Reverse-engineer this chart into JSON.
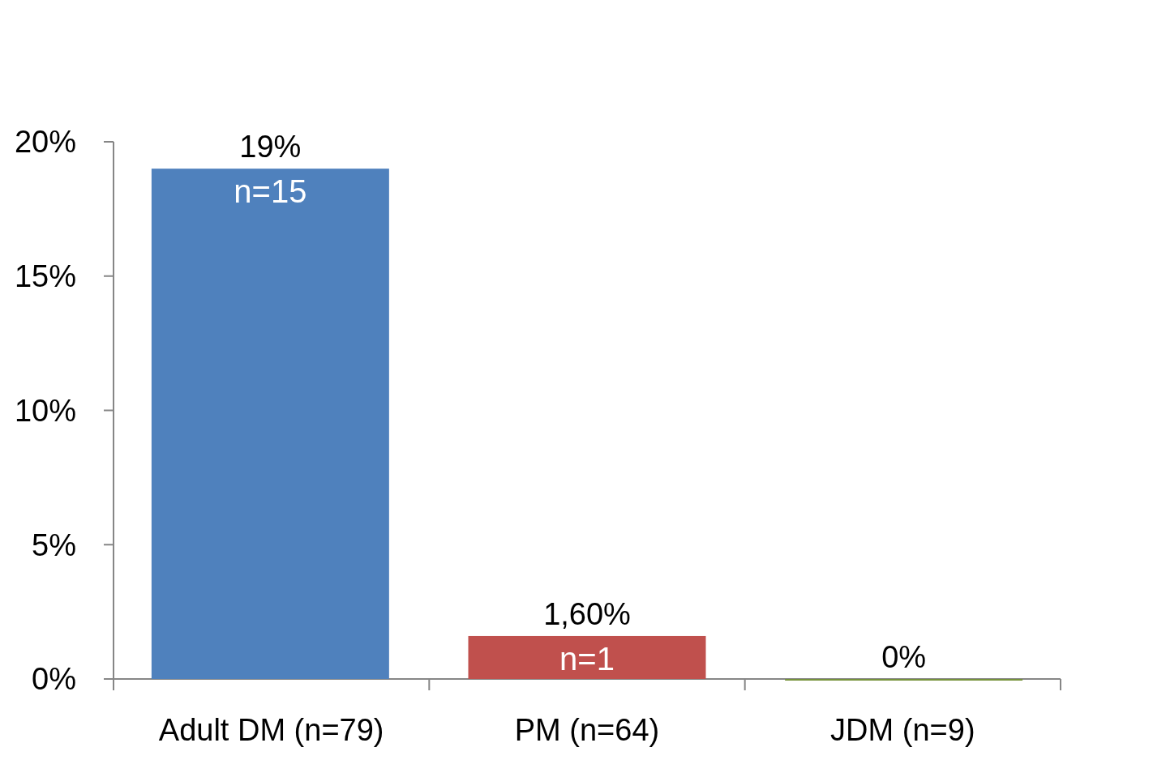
{
  "chart_data": {
    "type": "bar",
    "categories": [
      "Adult DM (n=79)",
      "PM (n=64)",
      "JDM (n=9)"
    ],
    "values": [
      19,
      1.6,
      0
    ],
    "colors": [
      "#4f81bd",
      "#c0504d",
      "#77933c"
    ],
    "value_labels": [
      "19%",
      "1,60%",
      "0%"
    ],
    "annotations": [
      {
        "text": "n=15",
        "x": "Adult DM (n=79)",
        "y": 19
      },
      {
        "text": "n=1",
        "x": "PM (n=64)",
        "y": 1.6
      }
    ],
    "ylim": [
      0,
      20
    ],
    "yticks": [
      {
        "value": 0,
        "label": "0%"
      },
      {
        "value": 5,
        "label": "5%"
      },
      {
        "value": 10,
        "label": "10%"
      },
      {
        "value": 15,
        "label": "15%"
      },
      {
        "value": 20,
        "label": "20%"
      }
    ],
    "grid": false
  }
}
